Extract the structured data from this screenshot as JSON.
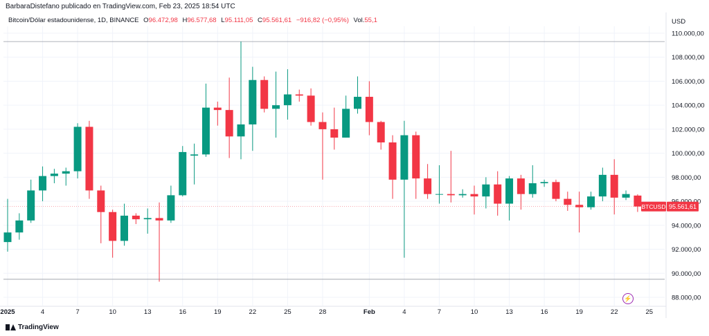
{
  "header": {
    "publisher": "BarbaraDistefano publicado en TradingView.com, Feb 23, 2025 18:54 UTC"
  },
  "legend": {
    "name": "Bitcoin/Dólar estadounidense, 1D, BINANCE",
    "o_label": "O",
    "o_value": "96.472,98",
    "h_label": "H",
    "h_value": "96.577,68",
    "l_label": "L",
    "l_value": "95.111,05",
    "c_label": "C",
    "c_value": "95.561,61",
    "change": "−916,82 (−0,95%)",
    "vol_label": "Vol.",
    "vol_value": "55,1"
  },
  "axis": {
    "currency": "USD"
  },
  "price_tag": {
    "symbol": "BTCUSD",
    "value": "95.561,61"
  },
  "branding": {
    "logo_text": "TradingView",
    "logo_icon": "tradingview-logo-icon",
    "alert_icon": "lightning-icon"
  },
  "colors": {
    "up": "#089981",
    "down": "#f23645",
    "grid": "#f0f3fa",
    "text": "#131722"
  },
  "chart_data": {
    "type": "candlestick",
    "ylim": [
      87000,
      111000
    ],
    "y_ticks": [
      88000,
      90000,
      92000,
      94000,
      96000,
      98000,
      100000,
      102000,
      104000,
      106000,
      108000,
      110000
    ],
    "y_tick_labels": [
      "88.000,00",
      "90.000,00",
      "92.000,00",
      "94.000,00",
      "96.000,00",
      "98.000,00",
      "100.000,00",
      "102.000,00",
      "104.000,00",
      "106.000,00",
      "108.000,00",
      "110.000,00"
    ],
    "x_ticks": [
      {
        "label": "2025",
        "index": 0
      },
      {
        "label": "4",
        "index": 3
      },
      {
        "label": "7",
        "index": 6
      },
      {
        "label": "10",
        "index": 9
      },
      {
        "label": "13",
        "index": 12
      },
      {
        "label": "16",
        "index": 15
      },
      {
        "label": "19",
        "index": 18
      },
      {
        "label": "22",
        "index": 21
      },
      {
        "label": "25",
        "index": 24
      },
      {
        "label": "28",
        "index": 27
      },
      {
        "label": "Feb",
        "index": 31
      },
      {
        "label": "4",
        "index": 34
      },
      {
        "label": "7",
        "index": 37
      },
      {
        "label": "10",
        "index": 40
      },
      {
        "label": "13",
        "index": 43
      },
      {
        "label": "16",
        "index": 46
      },
      {
        "label": "19",
        "index": 49
      },
      {
        "label": "22",
        "index": 52
      },
      {
        "label": "25",
        "index": 55
      }
    ],
    "range_lines": [
      109300,
      89500
    ],
    "last_price": 95561.61,
    "candles": [
      {
        "date": "2024-12-31",
        "o": 92600,
        "h": 96200,
        "l": 91800,
        "c": 93400
      },
      {
        "date": "2025-01-01",
        "o": 93400,
        "h": 95000,
        "l": 92800,
        "c": 94400
      },
      {
        "date": "2025-01-02",
        "o": 94400,
        "h": 97800,
        "l": 94200,
        "c": 96900
      },
      {
        "date": "2025-01-03",
        "o": 96900,
        "h": 98900,
        "l": 96000,
        "c": 98100
      },
      {
        "date": "2025-01-04",
        "o": 98100,
        "h": 98700,
        "l": 97500,
        "c": 98300
      },
      {
        "date": "2025-01-05",
        "o": 98300,
        "h": 98800,
        "l": 97300,
        "c": 98500
      },
      {
        "date": "2025-01-06",
        "o": 98500,
        "h": 102500,
        "l": 97900,
        "c": 102200
      },
      {
        "date": "2025-01-07",
        "o": 102200,
        "h": 102700,
        "l": 96200,
        "c": 96900
      },
      {
        "date": "2025-01-08",
        "o": 96900,
        "h": 97300,
        "l": 92500,
        "c": 95100
      },
      {
        "date": "2025-01-09",
        "o": 95100,
        "h": 95300,
        "l": 91300,
        "c": 92700
      },
      {
        "date": "2025-01-10",
        "o": 92700,
        "h": 95800,
        "l": 92300,
        "c": 94800
      },
      {
        "date": "2025-01-11",
        "o": 94800,
        "h": 95000,
        "l": 94100,
        "c": 94500
      },
      {
        "date": "2025-01-12",
        "o": 94500,
        "h": 95400,
        "l": 93300,
        "c": 94600
      },
      {
        "date": "2025-01-13",
        "o": 94600,
        "h": 95900,
        "l": 89300,
        "c": 94400
      },
      {
        "date": "2025-01-14",
        "o": 94400,
        "h": 97300,
        "l": 94200,
        "c": 96500
      },
      {
        "date": "2025-01-15",
        "o": 96500,
        "h": 100600,
        "l": 96400,
        "c": 100100
      },
      {
        "date": "2025-01-16",
        "o": 99800,
        "h": 100800,
        "l": 97400,
        "c": 99900
      },
      {
        "date": "2025-01-17",
        "o": 99900,
        "h": 105800,
        "l": 99700,
        "c": 103800
      },
      {
        "date": "2025-01-18",
        "o": 103800,
        "h": 104300,
        "l": 102300,
        "c": 103600
      },
      {
        "date": "2025-01-19",
        "o": 103600,
        "h": 106300,
        "l": 99600,
        "c": 101400
      },
      {
        "date": "2025-01-20",
        "o": 101400,
        "h": 109300,
        "l": 99500,
        "c": 102400
      },
      {
        "date": "2025-01-21",
        "o": 102400,
        "h": 107200,
        "l": 100200,
        "c": 106100
      },
      {
        "date": "2025-01-22",
        "o": 106100,
        "h": 106400,
        "l": 103400,
        "c": 103700
      },
      {
        "date": "2025-01-23",
        "o": 103700,
        "h": 106800,
        "l": 101300,
        "c": 104000
      },
      {
        "date": "2025-01-24",
        "o": 104000,
        "h": 107000,
        "l": 102800,
        "c": 104900
      },
      {
        "date": "2025-01-25",
        "o": 104900,
        "h": 105300,
        "l": 104300,
        "c": 104800
      },
      {
        "date": "2025-01-26",
        "o": 104800,
        "h": 105400,
        "l": 102300,
        "c": 102600
      },
      {
        "date": "2025-01-27",
        "o": 102600,
        "h": 103400,
        "l": 97800,
        "c": 102000
      },
      {
        "date": "2025-01-28",
        "o": 102000,
        "h": 103800,
        "l": 100300,
        "c": 101300
      },
      {
        "date": "2025-01-29",
        "o": 101300,
        "h": 104800,
        "l": 101300,
        "c": 103700
      },
      {
        "date": "2025-01-30",
        "o": 103700,
        "h": 106400,
        "l": 103300,
        "c": 104700
      },
      {
        "date": "2025-01-31",
        "o": 104700,
        "h": 106000,
        "l": 101500,
        "c": 102600
      },
      {
        "date": "2025-02-01",
        "o": 102600,
        "h": 102700,
        "l": 100300,
        "c": 100900
      },
      {
        "date": "2025-02-02",
        "o": 100900,
        "h": 101500,
        "l": 96200,
        "c": 97800
      },
      {
        "date": "2025-02-03",
        "o": 97800,
        "h": 102700,
        "l": 91300,
        "c": 101500
      },
      {
        "date": "2025-02-04",
        "o": 101500,
        "h": 101800,
        "l": 96200,
        "c": 97900
      },
      {
        "date": "2025-02-05",
        "o": 97900,
        "h": 99100,
        "l": 96200,
        "c": 96600
      },
      {
        "date": "2025-02-06",
        "o": 96600,
        "h": 99000,
        "l": 95800,
        "c": 96600
      },
      {
        "date": "2025-02-07",
        "o": 96600,
        "h": 100200,
        "l": 95900,
        "c": 96500
      },
      {
        "date": "2025-02-08",
        "o": 96500,
        "h": 97000,
        "l": 96300,
        "c": 96600
      },
      {
        "date": "2025-02-09",
        "o": 96600,
        "h": 97300,
        "l": 94900,
        "c": 96400
      },
      {
        "date": "2025-02-10",
        "o": 96400,
        "h": 98000,
        "l": 95400,
        "c": 97400
      },
      {
        "date": "2025-02-11",
        "o": 97400,
        "h": 98500,
        "l": 94800,
        "c": 95800
      },
      {
        "date": "2025-02-12",
        "o": 95800,
        "h": 98100,
        "l": 94400,
        "c": 97900
      },
      {
        "date": "2025-02-13",
        "o": 97900,
        "h": 98200,
        "l": 95300,
        "c": 96600
      },
      {
        "date": "2025-02-14",
        "o": 96600,
        "h": 99000,
        "l": 96300,
        "c": 97500
      },
      {
        "date": "2025-02-15",
        "o": 97500,
        "h": 97800,
        "l": 97200,
        "c": 97600
      },
      {
        "date": "2025-02-16",
        "o": 97600,
        "h": 97800,
        "l": 96000,
        "c": 96200
      },
      {
        "date": "2025-02-17",
        "o": 96200,
        "h": 96800,
        "l": 95200,
        "c": 95700
      },
      {
        "date": "2025-02-18",
        "o": 95700,
        "h": 96800,
        "l": 93400,
        "c": 95500
      },
      {
        "date": "2025-02-19",
        "o": 95500,
        "h": 96800,
        "l": 95300,
        "c": 96400
      },
      {
        "date": "2025-02-20",
        "o": 96400,
        "h": 98800,
        "l": 96000,
        "c": 98200
      },
      {
        "date": "2025-02-21",
        "o": 98200,
        "h": 99500,
        "l": 94900,
        "c": 96300
      },
      {
        "date": "2025-02-22",
        "o": 96300,
        "h": 96900,
        "l": 96100,
        "c": 96600
      },
      {
        "date": "2025-02-23",
        "o": 96472.98,
        "h": 96577.68,
        "l": 95111.05,
        "c": 95561.61
      }
    ]
  }
}
